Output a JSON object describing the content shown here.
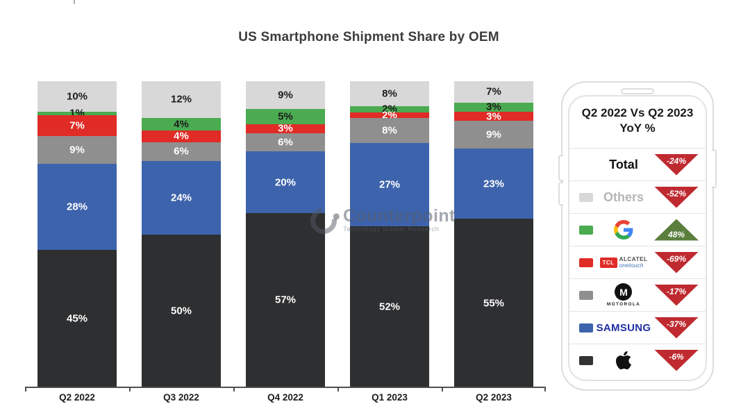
{
  "title": "US Smartphone Shipment Share by OEM",
  "watermark": {
    "name": "Counterpoint",
    "tagline": "Technology Market Research"
  },
  "chart_data": {
    "type": "bar",
    "stacked": true,
    "title": "US Smartphone Shipment Share by OEM",
    "categories": [
      "Q2 2022",
      "Q3 2022",
      "Q4 2022",
      "Q1 2023",
      "Q2 2023"
    ],
    "value_suffix": "%",
    "ylim": [
      0,
      100
    ],
    "grid": false,
    "legend_position": "right-panel",
    "stack_order_top_to_bottom": [
      "Others",
      "Google",
      "TCL-Alcatel",
      "Motorola",
      "Samsung",
      "Apple"
    ],
    "series": [
      {
        "name": "Others",
        "color": "#d8d8d8",
        "label_color": "#1c1c1c",
        "values": [
          10,
          12,
          9,
          8,
          7
        ]
      },
      {
        "name": "Google",
        "color": "#4bab51",
        "label_color": "#1c1c1c",
        "values": [
          1,
          4,
          5,
          2,
          3
        ]
      },
      {
        "name": "TCL-Alcatel",
        "color": "#e02b26",
        "label_color": "#ffffff",
        "values": [
          7,
          4,
          3,
          2,
          3
        ]
      },
      {
        "name": "Motorola",
        "color": "#8f8f8f",
        "label_color": "#ffffff",
        "values": [
          9,
          6,
          6,
          8,
          9
        ]
      },
      {
        "name": "Samsung",
        "color": "#3d63ac",
        "label_color": "#ffffff",
        "values": [
          28,
          24,
          20,
          27,
          23
        ]
      },
      {
        "name": "Apple",
        "color": "#2e2f31",
        "label_color": "#ffffff",
        "values": [
          45,
          50,
          57,
          52,
          55
        ]
      }
    ]
  },
  "legend_panel": {
    "header_line1": "Q2 2022 Vs Q2 2023",
    "header_line2": "YoY %",
    "up_color": "#5b7e3d",
    "down_color": "#bf2a30",
    "rows": [
      {
        "name": "Total",
        "kind": "text-dark",
        "label": "Total",
        "yoy": "-24%",
        "direction": "down"
      },
      {
        "name": "Others",
        "kind": "text-gray",
        "label": "Others",
        "yoy": "-52%",
        "direction": "down",
        "swatch": "#d8d8d8"
      },
      {
        "name": "Google",
        "kind": "google",
        "yoy": "48%",
        "direction": "up",
        "swatch": "#4bab51"
      },
      {
        "name": "TCL-Alcatel",
        "kind": "tcl",
        "yoy": "-69%",
        "direction": "down",
        "swatch": "#e02b26",
        "logo_box": "TCL",
        "logo_line1": "ALCATEL",
        "logo_line2": "onetouch"
      },
      {
        "name": "Motorola",
        "kind": "motorola",
        "yoy": "-17%",
        "direction": "down",
        "swatch": "#8f8f8f",
        "monogram": "M",
        "logo_text": "MOTOROLA"
      },
      {
        "name": "Samsung",
        "kind": "samsung",
        "yoy": "-37%",
        "direction": "down",
        "swatch": "#3d63ac",
        "logo_text": "SAMSUNG"
      },
      {
        "name": "Apple",
        "kind": "apple",
        "yoy": "-6%",
        "direction": "down",
        "swatch": "#333336"
      }
    ]
  }
}
